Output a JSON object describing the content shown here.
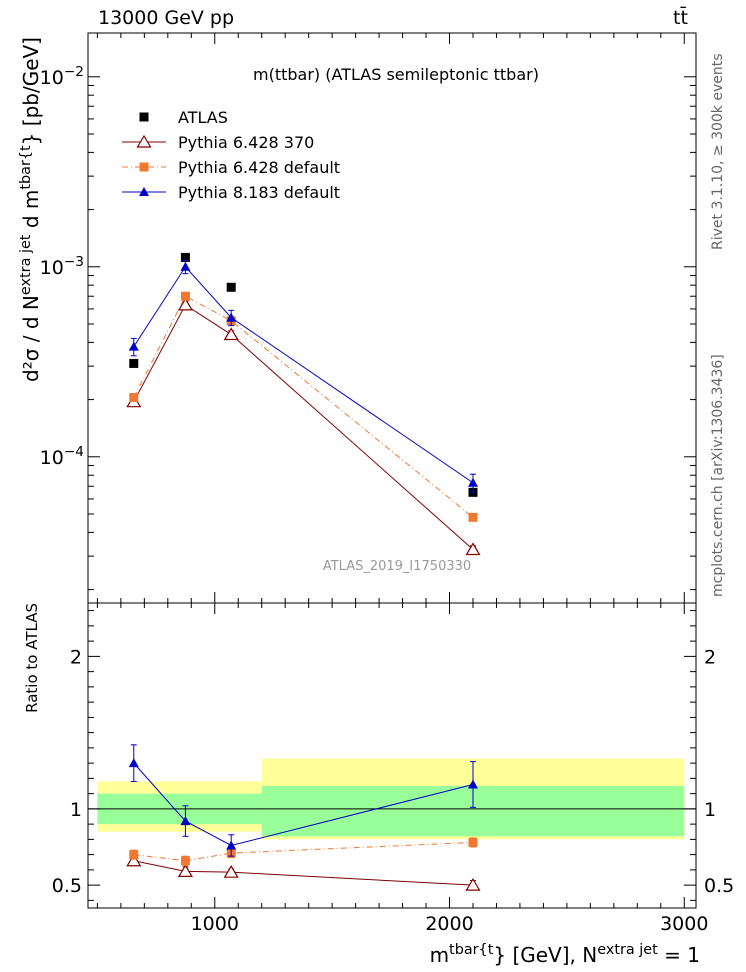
{
  "header": {
    "left": "13000 GeV pp",
    "right": "tt̄"
  },
  "side_labels": {
    "rivet": "Rivet 3.1.10, ≥ 300k events",
    "mcplots": "mcplots.cern.ch [arXiv:1306.3436]"
  },
  "chart_data": [
    {
      "type": "scatter",
      "panel": "main",
      "title": "m(ttbar) (ATLAS semileptonic ttbar)",
      "watermark": "ATLAS_2019_I1750330",
      "ylabel_parts": [
        "d²σ / d N",
        "extra jet",
        " d m",
        "tbar{t",
        "} [pb/GeV]"
      ],
      "yscale": "log",
      "ylim": [
        1.7e-05,
        0.017
      ],
      "xlim": [
        460,
        3050
      ],
      "y_ticks": [
        {
          "value": 0.0001,
          "base": "10",
          "exp": "−4"
        },
        {
          "value": 0.001,
          "base": "10",
          "exp": "−3"
        },
        {
          "value": 0.01,
          "base": "10",
          "exp": "−2"
        }
      ],
      "legend_position": "top-left",
      "series": [
        {
          "name": "ATLAS",
          "color": "#000000",
          "marker": "square",
          "line": "none",
          "x": [
            655,
            875,
            1070,
            2100
          ],
          "y": [
            0.00031,
            0.00112,
            0.00078,
            6.5e-05
          ],
          "err": [
            0,
            0,
            0,
            0
          ]
        },
        {
          "name": "Pythia 6.428 370",
          "color": "#800000",
          "marker": "open-triangle",
          "line": "solid",
          "x": [
            655,
            875,
            1070,
            2100
          ],
          "y": [
            0.000195,
            0.00063,
            0.00044,
            3.25e-05
          ],
          "err": [
            6e-06,
            3e-05,
            2e-05,
            1.5e-06
          ]
        },
        {
          "name": "Pythia 6.428 default",
          "color": "#f07830",
          "marker": "square",
          "line": "dashdot",
          "x": [
            655,
            875,
            1070,
            2100
          ],
          "y": [
            0.000205,
            0.0007,
            0.00052,
            4.8e-05
          ],
          "err": [
            5e-06,
            2e-05,
            2e-05,
            2e-06
          ]
        },
        {
          "name": "Pythia 8.183 default",
          "color": "#0000c8",
          "marker": "triangle",
          "line": "solid",
          "x": [
            655,
            875,
            1070,
            2100
          ],
          "y": [
            0.00038,
            0.001,
            0.00054,
            7.3e-05
          ],
          "err": [
            4e-05,
            8e-05,
            5e-05,
            8e-06
          ]
        }
      ]
    },
    {
      "type": "scatter",
      "panel": "ratio",
      "ylabel": "Ratio to ATLAS",
      "xlabel_parts": [
        "m",
        "tbar{t",
        "} [GeV], N",
        "extra jet",
        " = 1"
      ],
      "yscale": "linear",
      "ylim": [
        0.35,
        2.35
      ],
      "xlim": [
        460,
        3050
      ],
      "x_ticks": [
        1000,
        2000,
        3000
      ],
      "y_ticks": [
        0.5,
        1,
        2
      ],
      "bands": [
        {
          "x0": 500,
          "x1": 1200,
          "inner": [
            0.9,
            1.1
          ],
          "outer": [
            0.85,
            1.18
          ]
        },
        {
          "x0": 1200,
          "x1": 3000,
          "inner": [
            0.82,
            1.15
          ],
          "outer": [
            0.8,
            1.33
          ]
        }
      ],
      "series": [
        {
          "name": "Pythia 6.428 370",
          "x": [
            655,
            875,
            1070,
            2100
          ],
          "y": [
            0.66,
            0.59,
            0.585,
            0.5
          ],
          "err": [
            0.03,
            0.03,
            0.02,
            0.03
          ]
        },
        {
          "name": "Pythia 6.428 default",
          "x": [
            655,
            875,
            1070,
            2100
          ],
          "y": [
            0.7,
            0.66,
            0.71,
            0.78
          ],
          "err": [
            0.03,
            0.03,
            0.03,
            0.03
          ]
        },
        {
          "name": "Pythia 8.183 default",
          "x": [
            655,
            875,
            1070,
            2100
          ],
          "y": [
            1.3,
            0.92,
            0.76,
            1.16
          ],
          "err": [
            0.12,
            0.1,
            0.07,
            0.15
          ]
        }
      ]
    }
  ]
}
